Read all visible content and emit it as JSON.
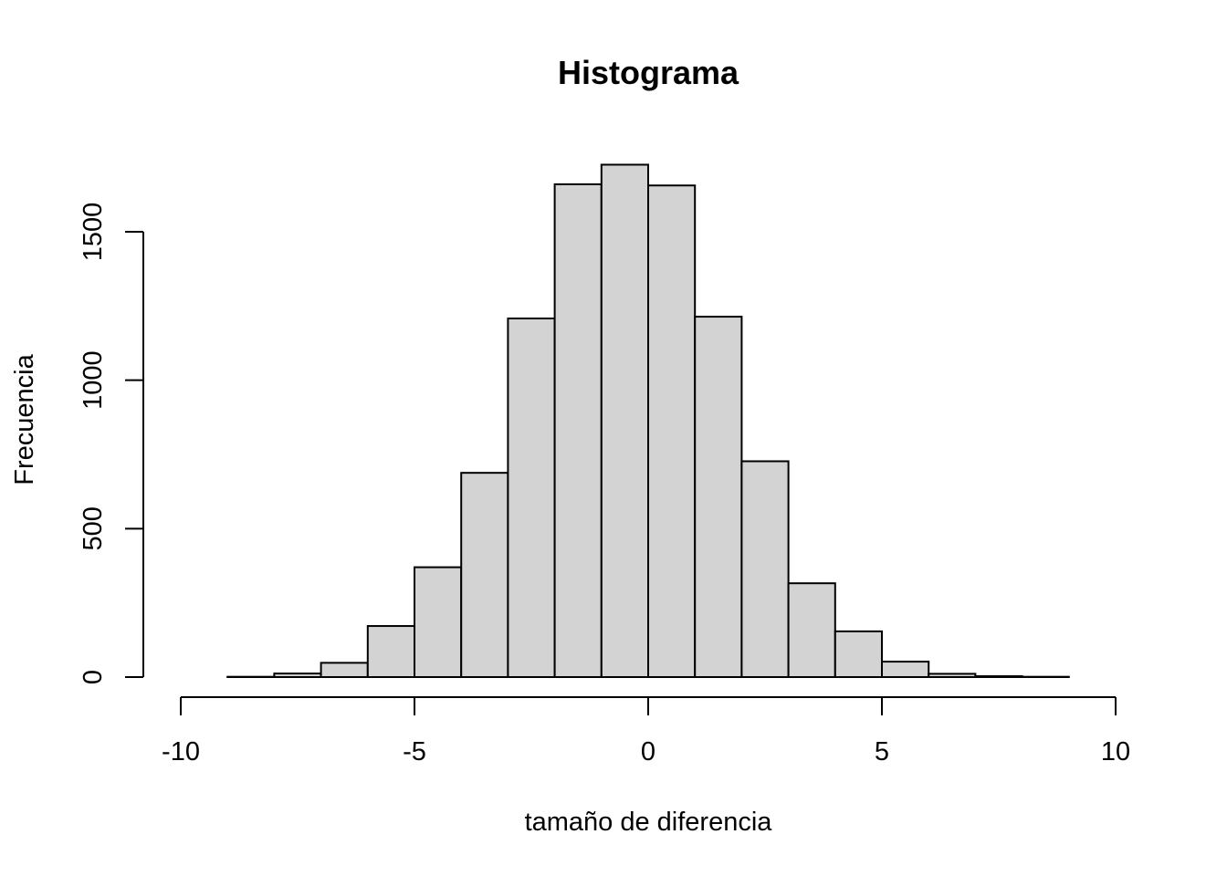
{
  "chart_data": {
    "type": "bar",
    "title": "Histograma",
    "xlabel": "tamaño de diferencia",
    "ylabel": "Frecuencia",
    "xlim": [
      -10,
      10
    ],
    "ylim": [
      0,
      1750
    ],
    "x_ticks": [
      -10,
      -5,
      0,
      5,
      10
    ],
    "x_tick_labels": [
      "-10",
      "-5",
      "0",
      "5",
      "10"
    ],
    "y_ticks": [
      0,
      500,
      1000,
      1500
    ],
    "y_tick_labels": [
      "0",
      "500",
      "1000",
      "1500"
    ],
    "bin_edges": [
      -10,
      -9,
      -8,
      -7,
      -6,
      -5,
      -4,
      -3,
      -2,
      -1,
      0,
      1,
      2,
      3,
      4,
      5,
      6,
      7,
      8,
      9,
      10
    ],
    "values": [
      0,
      1,
      12,
      48,
      172,
      370,
      688,
      1208,
      1660,
      1726,
      1656,
      1214,
      727,
      316,
      154,
      52,
      11,
      3,
      1,
      0
    ],
    "fill_color": "#d3d3d3",
    "edge_color": "#000000",
    "grid": false
  }
}
